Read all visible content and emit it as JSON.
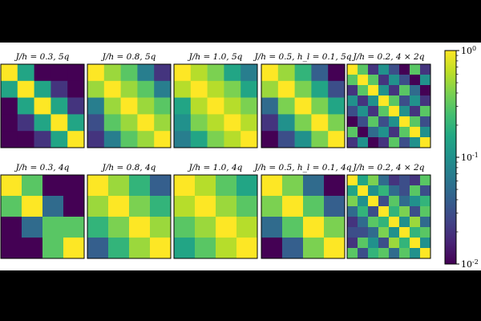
{
  "chart_data": {
    "type": "heatmap",
    "colorscale": "viridis",
    "colorbar": {
      "scale": "log",
      "range": [
        0.01,
        1
      ],
      "tick_labels": [
        "10^0",
        "10^-1",
        "10^-2"
      ]
    },
    "panels": [
      {
        "title": "J/h = 0.3, 5q",
        "matrix": [
          [
            1.0,
            0.15,
            0.01,
            0.01,
            0.01
          ],
          [
            0.15,
            1.0,
            0.15,
            0.02,
            0.01
          ],
          [
            0.01,
            0.15,
            1.0,
            0.15,
            0.02
          ],
          [
            0.01,
            0.02,
            0.15,
            1.0,
            0.15
          ],
          [
            0.01,
            0.01,
            0.02,
            0.15,
            1.0
          ]
        ]
      },
      {
        "title": "J/h = 0.8, 5q",
        "matrix": [
          [
            1.0,
            0.5,
            0.3,
            0.07,
            0.02
          ],
          [
            0.5,
            1.0,
            0.5,
            0.3,
            0.07
          ],
          [
            0.07,
            0.5,
            1.0,
            0.5,
            0.3
          ],
          [
            0.03,
            0.3,
            0.5,
            1.0,
            0.5
          ],
          [
            0.02,
            0.07,
            0.3,
            0.5,
            1.0
          ]
        ]
      },
      {
        "title": "J/h = 1.0, 5q",
        "matrix": [
          [
            1.0,
            0.6,
            0.4,
            0.15,
            0.07
          ],
          [
            0.6,
            1.0,
            0.6,
            0.4,
            0.15
          ],
          [
            0.15,
            0.6,
            1.0,
            0.6,
            0.4
          ],
          [
            0.1,
            0.4,
            0.6,
            1.0,
            0.6
          ],
          [
            0.07,
            0.15,
            0.4,
            0.6,
            1.0
          ]
        ]
      },
      {
        "title": "J/h = 0.5, h_l = 0.1, 5q",
        "matrix": [
          [
            1.0,
            0.5,
            0.2,
            0.04,
            0.01
          ],
          [
            0.5,
            1.0,
            0.4,
            0.15,
            0.03
          ],
          [
            0.05,
            0.4,
            1.0,
            0.4,
            0.15
          ],
          [
            0.02,
            0.1,
            0.4,
            1.0,
            0.4
          ],
          [
            0.01,
            0.03,
            0.1,
            0.4,
            1.0
          ]
        ]
      },
      {
        "title": "J/h = 0.2, 4 × 2q",
        "matrix": [
          [
            1.0,
            0.3,
            0.02,
            0.1,
            0.03,
            0.01,
            0.3,
            0.02
          ],
          [
            0.3,
            1.0,
            0.3,
            0.02,
            0.1,
            0.03,
            0.01,
            0.1
          ],
          [
            0.02,
            0.3,
            1.0,
            0.1,
            0.02,
            0.3,
            0.05,
            0.01
          ],
          [
            0.1,
            0.02,
            0.1,
            1.0,
            0.3,
            0.03,
            0.1,
            0.02
          ],
          [
            0.03,
            0.1,
            0.02,
            0.3,
            1.0,
            0.1,
            0.02,
            0.3
          ],
          [
            0.01,
            0.03,
            0.3,
            0.03,
            0.1,
            1.0,
            0.3,
            0.03
          ],
          [
            0.3,
            0.01,
            0.05,
            0.1,
            0.02,
            0.3,
            1.0,
            0.1
          ],
          [
            0.02,
            0.1,
            0.01,
            0.02,
            0.3,
            0.03,
            0.1,
            1.0
          ]
        ]
      },
      {
        "title": "J/h = 0.3, 4q",
        "matrix": [
          [
            1.0,
            0.3,
            0.01,
            0.01
          ],
          [
            0.3,
            1.0,
            0.05,
            0.01
          ],
          [
            0.01,
            0.05,
            0.3,
            0.3
          ],
          [
            0.01,
            0.01,
            0.3,
            1.0
          ]
        ]
      },
      {
        "title": "J/h = 0.8, 4q",
        "matrix": [
          [
            1.0,
            0.5,
            0.2,
            0.04
          ],
          [
            0.5,
            1.0,
            0.4,
            0.2
          ],
          [
            0.2,
            0.4,
            1.0,
            0.5
          ],
          [
            0.04,
            0.2,
            0.5,
            1.0
          ]
        ]
      },
      {
        "title": "J/h = 1.0, 4q",
        "matrix": [
          [
            1.0,
            0.6,
            0.3,
            0.15
          ],
          [
            0.6,
            1.0,
            0.5,
            0.3
          ],
          [
            0.3,
            0.5,
            1.0,
            0.6
          ],
          [
            0.15,
            0.3,
            0.6,
            1.0
          ]
        ]
      },
      {
        "title": "J/h = 0.5, h_l = 0.1, 4q",
        "matrix": [
          [
            1.0,
            0.4,
            0.05,
            0.01
          ],
          [
            0.4,
            1.0,
            0.3,
            0.04
          ],
          [
            0.05,
            0.3,
            1.0,
            0.4
          ],
          [
            0.01,
            0.04,
            0.4,
            1.0
          ]
        ]
      },
      {
        "title": "J/h = 0.2, 4 × 2q",
        "matrix": [
          [
            1.0,
            0.15,
            0.4,
            0.05,
            0.02,
            0.03,
            0.02,
            0.3
          ],
          [
            0.15,
            1.0,
            0.1,
            0.2,
            0.05,
            0.03,
            0.3,
            0.03
          ],
          [
            0.4,
            0.1,
            1.0,
            0.03,
            0.3,
            0.05,
            0.1,
            0.2
          ],
          [
            0.05,
            0.2,
            0.03,
            1.0,
            0.2,
            0.4,
            0.03,
            0.3
          ],
          [
            0.02,
            0.05,
            0.3,
            0.2,
            1.0,
            0.1,
            0.5,
            0.05
          ],
          [
            0.03,
            0.03,
            0.05,
            0.4,
            0.1,
            1.0,
            0.2,
            0.3
          ],
          [
            0.02,
            0.3,
            0.1,
            0.03,
            0.5,
            0.2,
            1.0,
            0.1
          ],
          [
            0.3,
            0.03,
            0.2,
            0.3,
            0.05,
            0.3,
            0.1,
            1.0
          ]
        ]
      }
    ]
  }
}
